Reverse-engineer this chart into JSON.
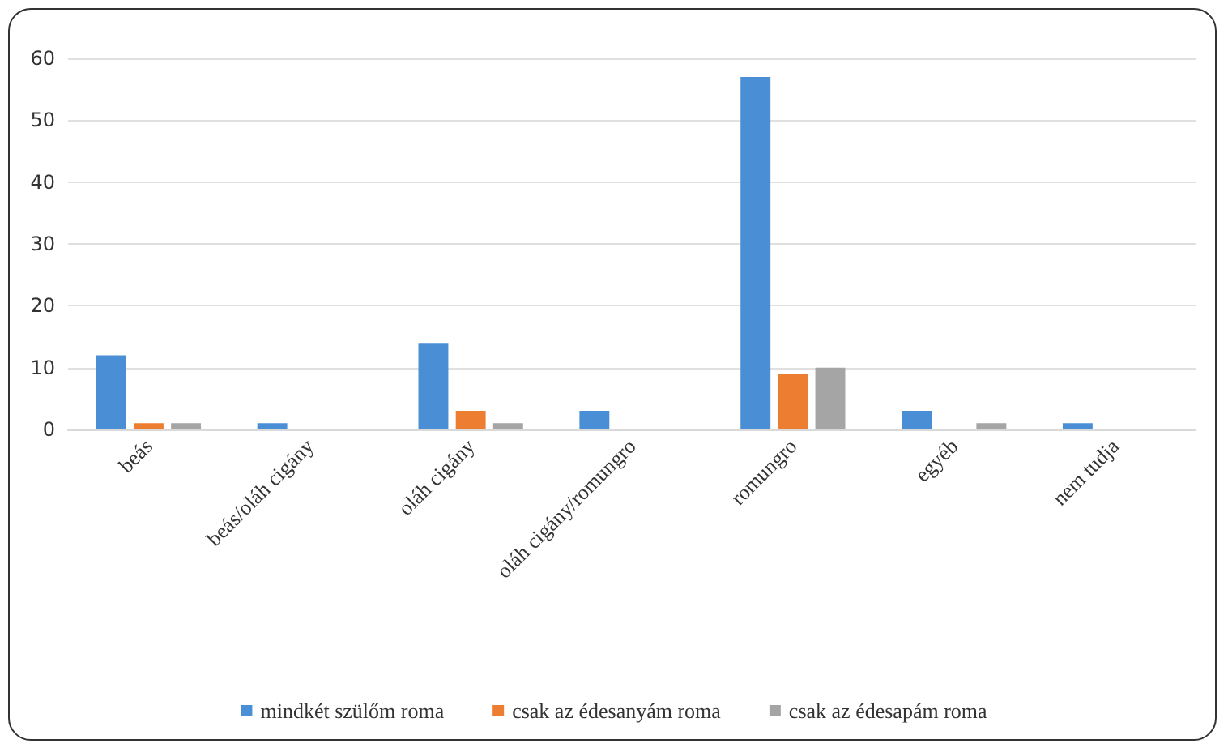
{
  "chart_data": {
    "type": "bar",
    "categories": [
      "beás",
      "beás/oláh cigány",
      "oláh cigány",
      "oláh cigány/romungro",
      "romungro",
      "egyéb",
      "nem tudja"
    ],
    "series": [
      {
        "name": "mindkét szülőm roma",
        "color": "#4a8fd6",
        "values": [
          12,
          1,
          14,
          3,
          57,
          3,
          1
        ]
      },
      {
        "name": "csak az édesanyám roma",
        "color": "#ed7d31",
        "values": [
          1,
          0,
          3,
          0,
          9,
          0,
          0
        ]
      },
      {
        "name": "csak az édesapám roma",
        "color": "#a5a5a5",
        "values": [
          1,
          0,
          1,
          0,
          10,
          1,
          0
        ]
      }
    ],
    "ylim": [
      0,
      60
    ],
    "yticks": [
      0,
      10,
      20,
      30,
      40,
      50,
      60
    ],
    "grid": "y",
    "legend": "bottom"
  }
}
